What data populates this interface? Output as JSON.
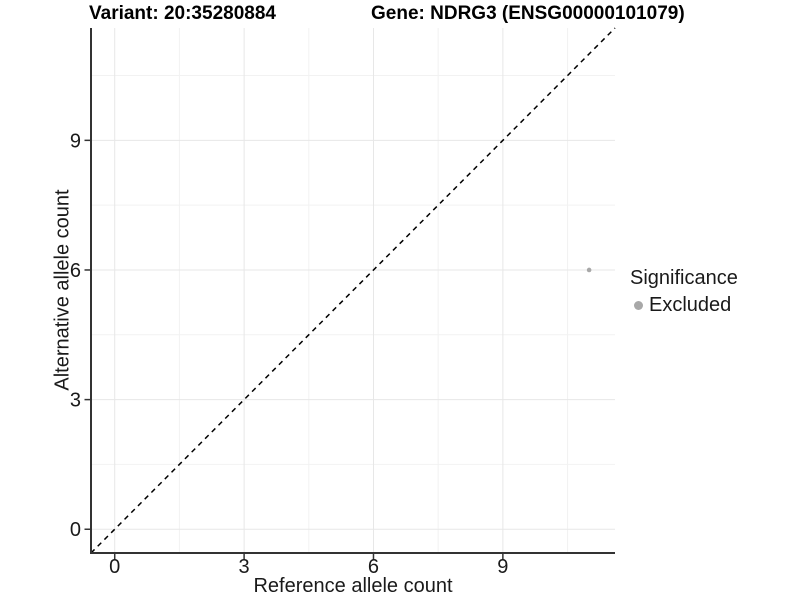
{
  "titles": {
    "variant": "Variant: 20:35280884",
    "gene": "Gene: NDRG3 (ENSG00000101079)"
  },
  "axes": {
    "x_label": "Reference allele count",
    "y_label": "Alternative allele count"
  },
  "legend": {
    "title": "Significance",
    "items": [
      {
        "label": "Excluded",
        "color": "#a8a8a8"
      }
    ]
  },
  "chart_data": {
    "type": "scatter",
    "title": "Variant: 20:35280884 — Gene: NDRG3 (ENSG00000101079)",
    "xlabel": "Reference allele count",
    "ylabel": "Alternative allele count",
    "xlim": [
      -0.55,
      11.6
    ],
    "ylim": [
      -0.55,
      11.6
    ],
    "x_ticks": [
      0,
      3,
      6,
      9
    ],
    "y_ticks": [
      0,
      3,
      6,
      9
    ],
    "x_minor_ticks": [
      1.5,
      4.5,
      7.5,
      10.5
    ],
    "y_minor_ticks": [
      1.5,
      4.5,
      7.5,
      10.5
    ],
    "grid": true,
    "legend_position": "right",
    "series": [
      {
        "name": "Excluded",
        "color": "#a8a8a8",
        "points": [
          {
            "x": 11,
            "y": 6
          }
        ]
      }
    ],
    "reference_line": {
      "slope": 1,
      "intercept": 0,
      "style": "dashed",
      "color": "#000000"
    },
    "colors": {
      "point_excluded": "#a8a8a8",
      "grid_major": "#e7e7e7",
      "grid_minor": "#f2f2f2",
      "axis_line": "#333333",
      "tick_mark": "#333333",
      "tick_label": "#1a1a1a",
      "background": "#ffffff"
    }
  }
}
